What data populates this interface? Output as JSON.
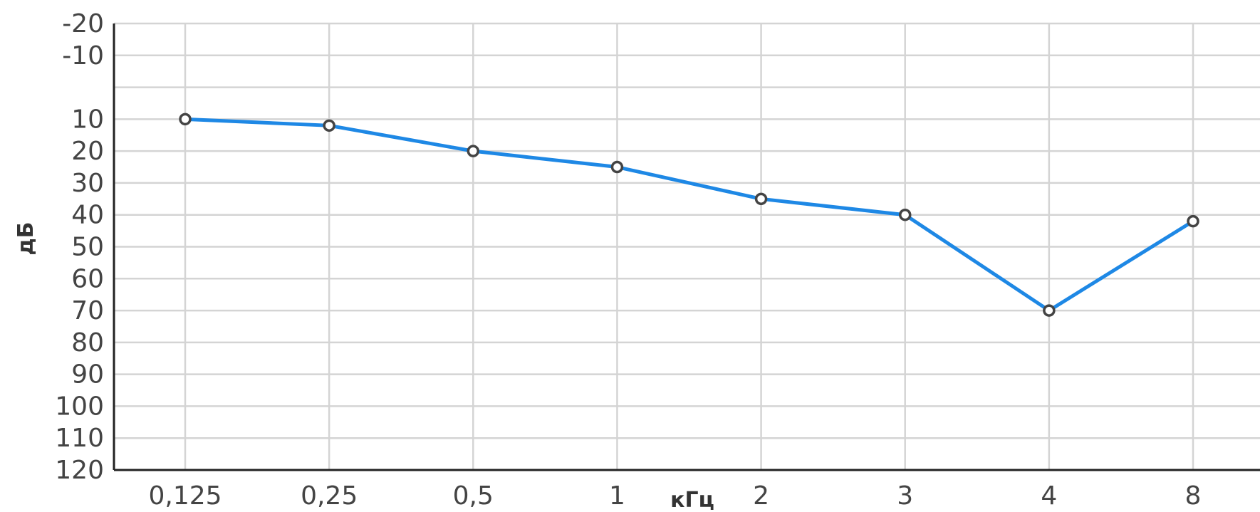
{
  "chart_data": {
    "type": "line",
    "title": "",
    "xlabel": "кГц",
    "ylabel": "дБ",
    "categories": [
      "0,125",
      "0,25",
      "0,5",
      "1",
      "2",
      "3",
      "4",
      "8"
    ],
    "y_ticks": [
      -20,
      -10,
      10,
      20,
      30,
      40,
      50,
      60,
      70,
      80,
      90,
      100,
      110,
      120
    ],
    "y_gridlines": [
      -20,
      -10,
      0,
      10,
      20,
      30,
      40,
      50,
      60,
      70,
      80,
      90,
      100,
      110,
      120
    ],
    "ylim": [
      -20,
      120
    ],
    "y_inverted": true,
    "grid": true,
    "legend": "none",
    "series": [
      {
        "values": [
          10,
          12,
          20,
          25,
          35,
          40,
          70,
          42
        ],
        "color": "#1e88e5",
        "marker": "hollow-circle"
      }
    ]
  },
  "colors": {
    "grid": "#d4d4d4",
    "axis": "#222222",
    "line": "#1e88e5",
    "marker_fill": "#ffffff",
    "marker_stroke": "#444444"
  }
}
